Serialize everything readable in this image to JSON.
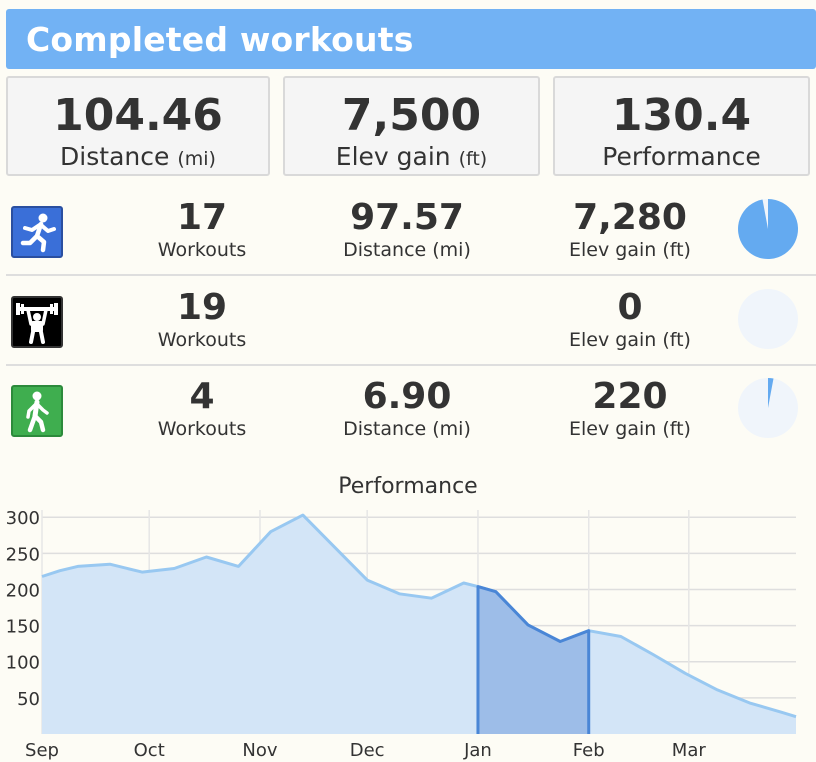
{
  "header": {
    "title": "Completed workouts"
  },
  "summary": [
    {
      "value": "104.46",
      "label": "Distance",
      "unit": "(mi)"
    },
    {
      "value": "7,500",
      "label": "Elev gain",
      "unit": "(ft)"
    },
    {
      "value": "130.4",
      "label": "Performance",
      "unit": ""
    }
  ],
  "activities": [
    {
      "icon": "running-icon",
      "icon_color": "#3a6fd8",
      "workouts": "17",
      "workouts_label": "Workouts",
      "distance": "97.57",
      "distance_label": "Distance (mi)",
      "elev": "7,280",
      "elev_label": "Elev gain (ft)",
      "elev_share": 0.9707
    },
    {
      "icon": "weightlifting-icon",
      "icon_color": "#000000",
      "workouts": "19",
      "workouts_label": "Workouts",
      "distance": "",
      "distance_label": "",
      "elev": "0",
      "elev_label": "Elev gain (ft)",
      "elev_share": 0
    },
    {
      "icon": "walking-icon",
      "icon_color": "#3fae4f",
      "workouts": "4",
      "workouts_label": "Workouts",
      "distance": "6.90",
      "distance_label": "Distance (mi)",
      "elev": "220",
      "elev_label": "Elev gain (ft)",
      "elev_share": 0.0293
    }
  ],
  "colors": {
    "accent": "#72b2f4",
    "pie_fill": "#64aaf0",
    "pie_bg": "#f0f5fb",
    "area_fill": "#d3e5f7",
    "area_line": "#98c8f1",
    "highlight_fill": "#9dbde8",
    "highlight_line": "#4a86d6"
  },
  "chart_data": {
    "type": "area",
    "title": "Performance",
    "x_ticks": [
      "Sep",
      "Oct",
      "Nov",
      "Dec",
      "Jan",
      "Feb",
      "Mar"
    ],
    "x_tick_days": [
      0,
      30,
      61,
      91,
      122,
      153,
      181
    ],
    "y_ticks": [
      50,
      100,
      150,
      200,
      250,
      300
    ],
    "xlim": [
      0,
      211
    ],
    "ylim": [
      0,
      310
    ],
    "grid": true,
    "series": [
      {
        "x": [
          0,
          5,
          10,
          19,
          28,
          37,
          46,
          55,
          64,
          73,
          82,
          91,
          100,
          109,
          118,
          122,
          127,
          136,
          145,
          153,
          162,
          171,
          180,
          189,
          198,
          207,
          211
        ],
        "y": [
          218,
          226,
          232,
          235,
          224,
          229,
          245,
          232,
          280,
          303,
          258,
          213,
          194,
          188,
          209,
          204,
          197,
          151,
          128,
          143,
          135,
          110,
          84,
          61,
          43,
          30,
          24
        ]
      }
    ],
    "highlight_range": [
      122,
      153
    ]
  }
}
